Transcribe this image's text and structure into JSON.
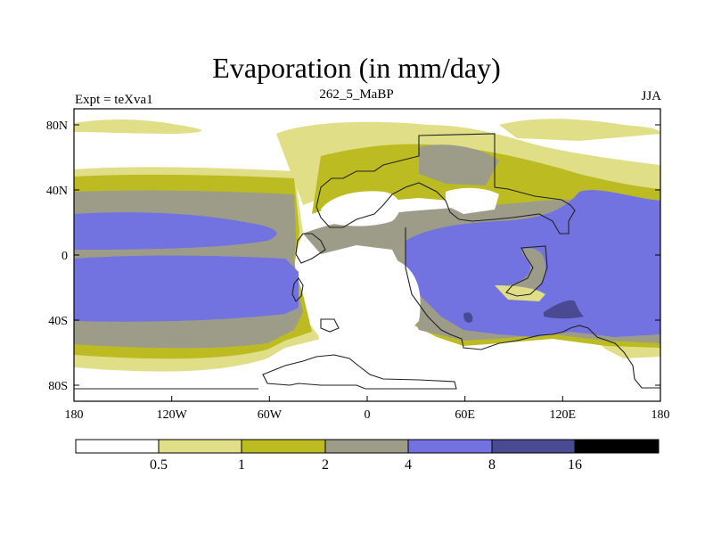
{
  "title": "Evaporation (in mm/day)",
  "subtitle_left": "Expt = teXva1",
  "subtitle_center": "262_5_MaBP",
  "subtitle_right": "JJA",
  "axes": {
    "x_ticks": [
      "180",
      "120W",
      "60W",
      "0",
      "60E",
      "120E",
      "180"
    ],
    "y_ticks": [
      "80N",
      "40N",
      "0",
      "40S",
      "80S"
    ]
  },
  "colorbar": {
    "labels": [
      "0.5",
      "1",
      "2",
      "4",
      "8",
      "16"
    ],
    "colors": [
      "#ffffff",
      "#e0df88",
      "#bcbc22",
      "#9c9c88",
      "#7272e0",
      "#4a4a92",
      "#000000"
    ]
  }
}
